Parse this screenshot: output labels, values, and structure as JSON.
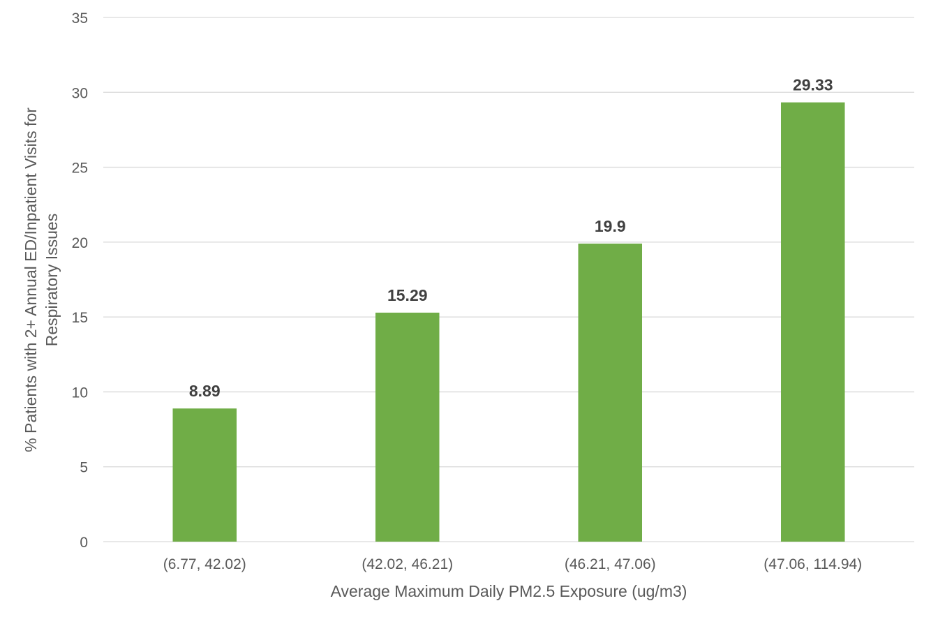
{
  "chart_data": {
    "type": "bar",
    "title": "",
    "categories": [
      "(6.77, 42.02)",
      "(42.02, 46.21)",
      "(46.21, 47.06)",
      "(47.06, 114.94)"
    ],
    "values": [
      8.89,
      15.29,
      19.9,
      29.33
    ],
    "data_labels": [
      "8.89",
      "15.29",
      "19.9",
      "29.33"
    ],
    "xlabel": "Average Maximum Daily PM2.5 Exposure (ug/m3)",
    "ylabel_lines": [
      "% Patients with 2+ Annual ED/Inpatient Visits for",
      "Respiratory Issues"
    ],
    "ylim": [
      0,
      35
    ],
    "yticks": [
      0,
      5,
      10,
      15,
      20,
      25,
      30,
      35
    ],
    "ytick_labels": [
      "0",
      "5",
      "10",
      "15",
      "20",
      "25",
      "30",
      "35"
    ],
    "grid": true,
    "legend": "none",
    "colors": {
      "bar": "#70ad47",
      "grid": "#d9d9d9",
      "tick_text": "#595959",
      "label_text": "#404040"
    }
  }
}
